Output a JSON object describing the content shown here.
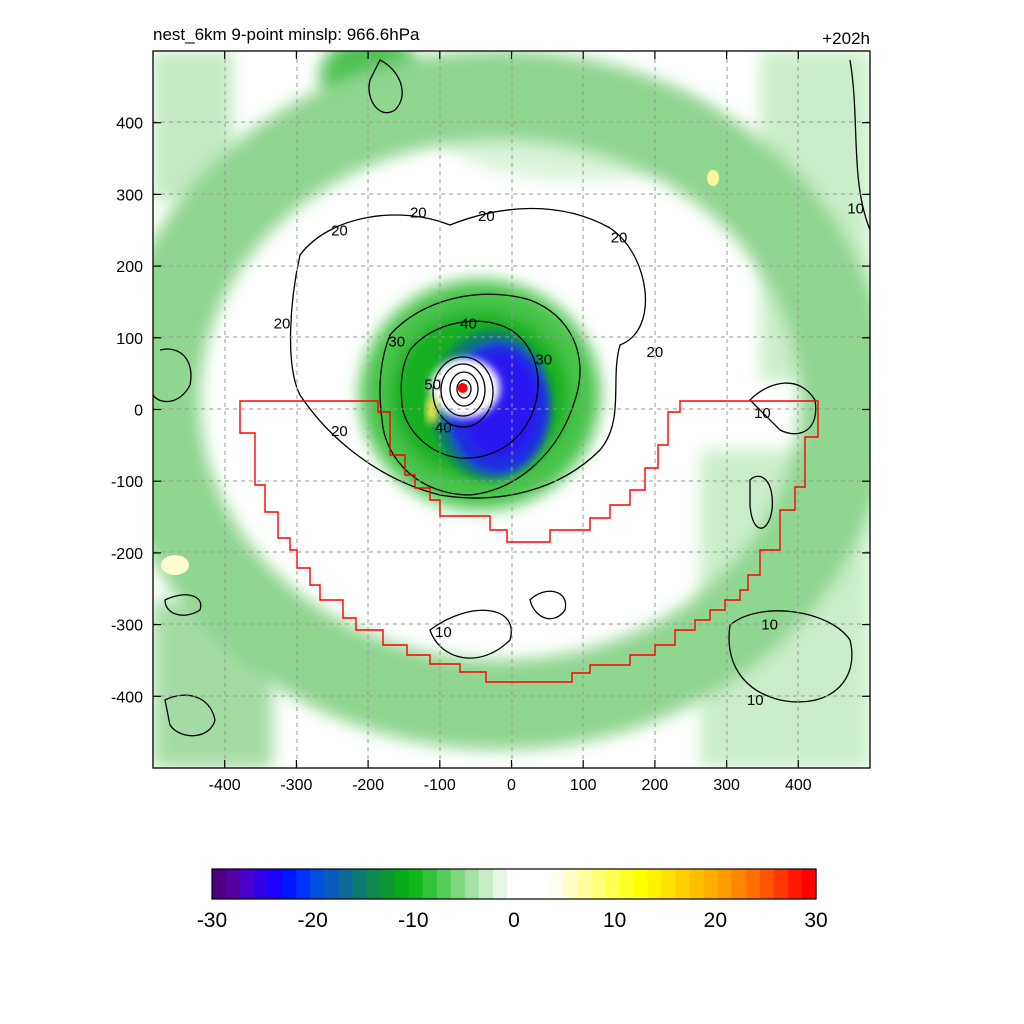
{
  "chart_data": {
    "type": "heatmap",
    "title": "nest_6km  9-point minslp: 966.6hPa",
    "time_label": "+202h",
    "xlim": [
      -500,
      500
    ],
    "ylim": [
      -500,
      500
    ],
    "x_ticks": [
      -400,
      -300,
      -200,
      -100,
      0,
      100,
      200,
      300,
      400
    ],
    "y_ticks": [
      400,
      300,
      200,
      100,
      0,
      -100,
      -200,
      -300,
      -400
    ],
    "x_tick_labels": [
      "-400",
      "-300",
      "-200",
      "-100",
      "0",
      "100",
      "200",
      "300",
      "400"
    ],
    "y_tick_labels": [
      "400",
      "300",
      "200",
      "100",
      "0",
      "-100",
      "-200",
      "-300",
      "-400"
    ],
    "grid": true,
    "center": {
      "x": -68,
      "y": 30,
      "color": "#ff0000"
    },
    "contour_labels": [
      {
        "text": "10",
        "x": 480,
        "y": 280
      },
      {
        "text": "10",
        "x": 350,
        "y": -5
      },
      {
        "text": "10",
        "x": -95,
        "y": -310
      },
      {
        "text": "10",
        "x": 360,
        "y": -300
      },
      {
        "text": "10",
        "x": 340,
        "y": -405
      },
      {
        "text": "20",
        "x": -240,
        "y": 250
      },
      {
        "text": "20",
        "x": -130,
        "y": 275
      },
      {
        "text": "20",
        "x": -35,
        "y": 270
      },
      {
        "text": "20",
        "x": 150,
        "y": 240
      },
      {
        "text": "20",
        "x": -320,
        "y": 120
      },
      {
        "text": "20",
        "x": 200,
        "y": 80
      },
      {
        "text": "20",
        "x": -240,
        "y": -30
      },
      {
        "text": "30",
        "x": -160,
        "y": 95
      },
      {
        "text": "30",
        "x": 45,
        "y": 70
      },
      {
        "text": "40",
        "x": -60,
        "y": 120
      },
      {
        "text": "40",
        "x": -95,
        "y": -25
      },
      {
        "text": "50",
        "x": -110,
        "y": 35
      }
    ],
    "colorbar": {
      "min": -30,
      "max": 30,
      "tick_labels": [
        "-30",
        "-20",
        "-10",
        "0",
        "10",
        "20",
        "30"
      ],
      "colors": [
        "#4b0082",
        "#5500a0",
        "#4a00c8",
        "#3000e6",
        "#1a00ff",
        "#0016ff",
        "#0033ff",
        "#0050e0",
        "#0a5ac0",
        "#0f6a9a",
        "#107a70",
        "#0e8a50",
        "#0a9a30",
        "#05aa18",
        "#10b81c",
        "#30c23a",
        "#55cc5a",
        "#7dd67e",
        "#a3e2a3",
        "#c8eec8",
        "#e6f7e6",
        "#ffffff",
        "#ffffff",
        "#ffffff",
        "#fffff0",
        "#ffffc8",
        "#ffffa0",
        "#ffff78",
        "#ffff50",
        "#ffff28",
        "#ffff00",
        "#fff000",
        "#ffe000",
        "#ffcf00",
        "#ffbe00",
        "#ffac00",
        "#ff9a00",
        "#ff8700",
        "#ff7000",
        "#ff5500",
        "#ff3800",
        "#ff1800",
        "#ff0000"
      ]
    }
  }
}
